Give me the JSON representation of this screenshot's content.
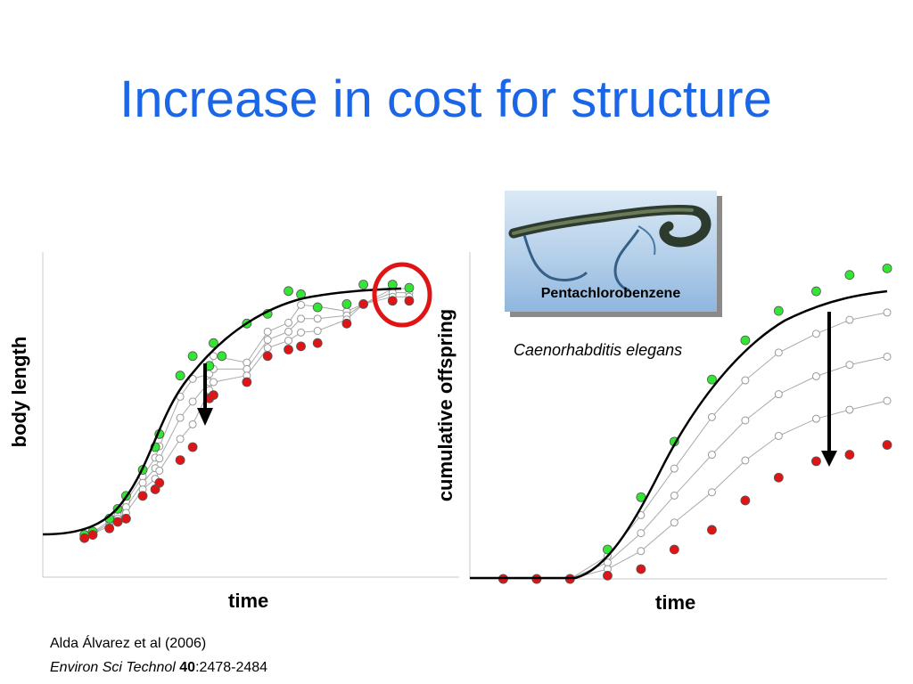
{
  "title": "Increase in cost for structure",
  "photo": {
    "label": "Pentachlorobenzene",
    "caption": "Caenorhabditis elegans"
  },
  "citation": {
    "line1": "Alda Álvarez et al (2006)",
    "journal": "Environ Sci Technol",
    "volume": "40",
    "pages": ":2478-2484"
  },
  "colors": {
    "title": "#1a66e6",
    "control_points": "#33e633",
    "highest_dose_points": "#e01414",
    "intermediate_points": "#ffffff",
    "highlight_circle": "#e01414",
    "model_curves": "#aaaaaa"
  },
  "chart_data": [
    {
      "type": "scatter",
      "title": "",
      "xlabel": "time",
      "ylabel": "body length",
      "xlim": [
        0,
        100
      ],
      "ylim": [
        0,
        100
      ],
      "grid": false,
      "annotations": [
        "downward arrow showing reduced growth",
        "red circle around final data points"
      ],
      "series": [
        {
          "color": "green",
          "x": [
            10,
            12,
            16,
            18,
            20,
            24,
            27,
            28,
            33,
            36,
            40,
            41,
            43,
            49,
            54,
            59,
            62,
            66,
            73,
            77,
            84,
            88
          ],
          "y": [
            13,
            14,
            18,
            21,
            25,
            33,
            40,
            44,
            62,
            68,
            65,
            72,
            68,
            78,
            81,
            88,
            87,
            83,
            84,
            90,
            90,
            89
          ]
        },
        {
          "color": "red",
          "x": [
            10,
            12,
            16,
            18,
            20,
            24,
            27,
            28,
            33,
            36,
            40,
            41,
            49,
            54,
            59,
            62,
            66,
            73,
            77,
            84,
            88
          ],
          "y": [
            12,
            13,
            15,
            17,
            18,
            25,
            27,
            29,
            36,
            40,
            55,
            56,
            60,
            68,
            70,
            71,
            72,
            78,
            84,
            85,
            85
          ]
        }
      ]
    },
    {
      "type": "scatter",
      "title": "",
      "xlabel": "time",
      "ylabel": "cumulative offspring",
      "xlim": [
        0,
        100
      ],
      "ylim": [
        0,
        100
      ],
      "grid": false,
      "annotations": [
        "downward arrow showing reduced reproduction"
      ],
      "series": [
        {
          "color": "green",
          "x": [
            8,
            16,
            24,
            33,
            41,
            49,
            58,
            66,
            74,
            83,
            91,
            100
          ],
          "y": [
            0,
            0,
            0,
            9,
            25,
            42,
            61,
            73,
            82,
            88,
            93,
            95
          ]
        },
        {
          "color": "red",
          "x": [
            8,
            16,
            24,
            33,
            41,
            49,
            58,
            66,
            74,
            83,
            91,
            100
          ],
          "y": [
            0,
            0,
            0,
            1,
            3,
            9,
            15,
            24,
            31,
            36,
            38,
            41
          ]
        }
      ]
    }
  ]
}
